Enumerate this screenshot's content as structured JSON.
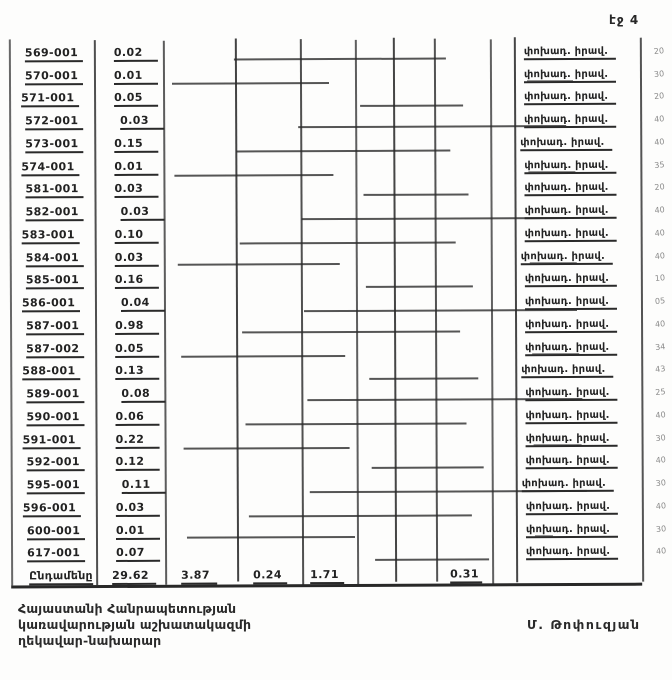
{
  "page_label": "էջ 4",
  "table": {
    "rows": [
      {
        "code": "569-001",
        "value": "0.02",
        "note": "փոխադ. իրավ.",
        "mark": "20"
      },
      {
        "code": "570-001",
        "value": "0.01",
        "note": "փոխադ. իրավ.",
        "mark": "30"
      },
      {
        "code": "571-001",
        "value": "0.05",
        "note": "փոխադ. իրավ.",
        "mark": "20"
      },
      {
        "code": "572-001",
        "value": "0.03",
        "note": "փոխադ. իրավ.",
        "mark": "40"
      },
      {
        "code": "573-001",
        "value": "0.15",
        "note": "փոխադ. իրավ.",
        "mark": "40"
      },
      {
        "code": "574-001",
        "value": "0.01",
        "note": "փոխադ. իրավ.",
        "mark": "35"
      },
      {
        "code": "581-001",
        "value": "0.03",
        "note": "փոխադ. իրավ.",
        "mark": "20"
      },
      {
        "code": "582-001",
        "value": "0.03",
        "note": "փոխադ. իրավ.",
        "mark": "40"
      },
      {
        "code": "583-001",
        "value": "0.10",
        "note": "փոխադ. իրավ.",
        "mark": "40"
      },
      {
        "code": "584-001",
        "value": "0.03",
        "note": "փոխադ. իրավ.",
        "mark": "40"
      },
      {
        "code": "585-001",
        "value": "0.16",
        "note": "փոխադ. իրավ.",
        "mark": "10"
      },
      {
        "code": "586-001",
        "value": "0.04",
        "note": "փոխադ. իրավ.",
        "mark": "05"
      },
      {
        "code": "587-001",
        "value": "0.98",
        "note": "փոխադ. իրավ.",
        "mark": "40"
      },
      {
        "code": "587-002",
        "value": "0.05",
        "note": "փոխադ. իրավ.",
        "mark": "34"
      },
      {
        "code": "588-001",
        "value": "0.13",
        "note": "փոխադ. իրավ.",
        "mark": "43"
      },
      {
        "code": "589-001",
        "value": "0.08",
        "note": "փոխադ. իրավ.",
        "mark": "25"
      },
      {
        "code": "590-001",
        "value": "0.06",
        "note": "փոխադ. իրավ.",
        "mark": "40"
      },
      {
        "code": "591-001",
        "value": "0.22",
        "note": "փոխադ. իրավ.",
        "mark": "30"
      },
      {
        "code": "592-001",
        "value": "0.12",
        "note": "փոխադ. իրավ.",
        "mark": "40"
      },
      {
        "code": "595-001",
        "value": "0.11",
        "note": "փոխադ. իրավ.",
        "mark": "30"
      },
      {
        "code": "596-001",
        "value": "0.03",
        "note": "փոխադ. իրավ.",
        "mark": "40"
      },
      {
        "code": "600-001",
        "value": "0.01",
        "note": "փոխադ. իրավ.",
        "mark": "30"
      },
      {
        "code": "617-001",
        "value": "0.07",
        "note": "փոխադ. իրավ.",
        "mark": "40"
      }
    ],
    "total": {
      "label": "Ընդամենը",
      "col2": "29.62",
      "col3": "3.87",
      "col4": "0.24",
      "col5": "1.71",
      "col8": "0.31"
    }
  },
  "footer": {
    "issuer_lines": [
      "Հայաստանի Հանրապետության",
      "կառավարության աշխատակազմի",
      "ղեկավար-նախարար"
    ],
    "signatory": "Մ. Թոփուզյան"
  }
}
